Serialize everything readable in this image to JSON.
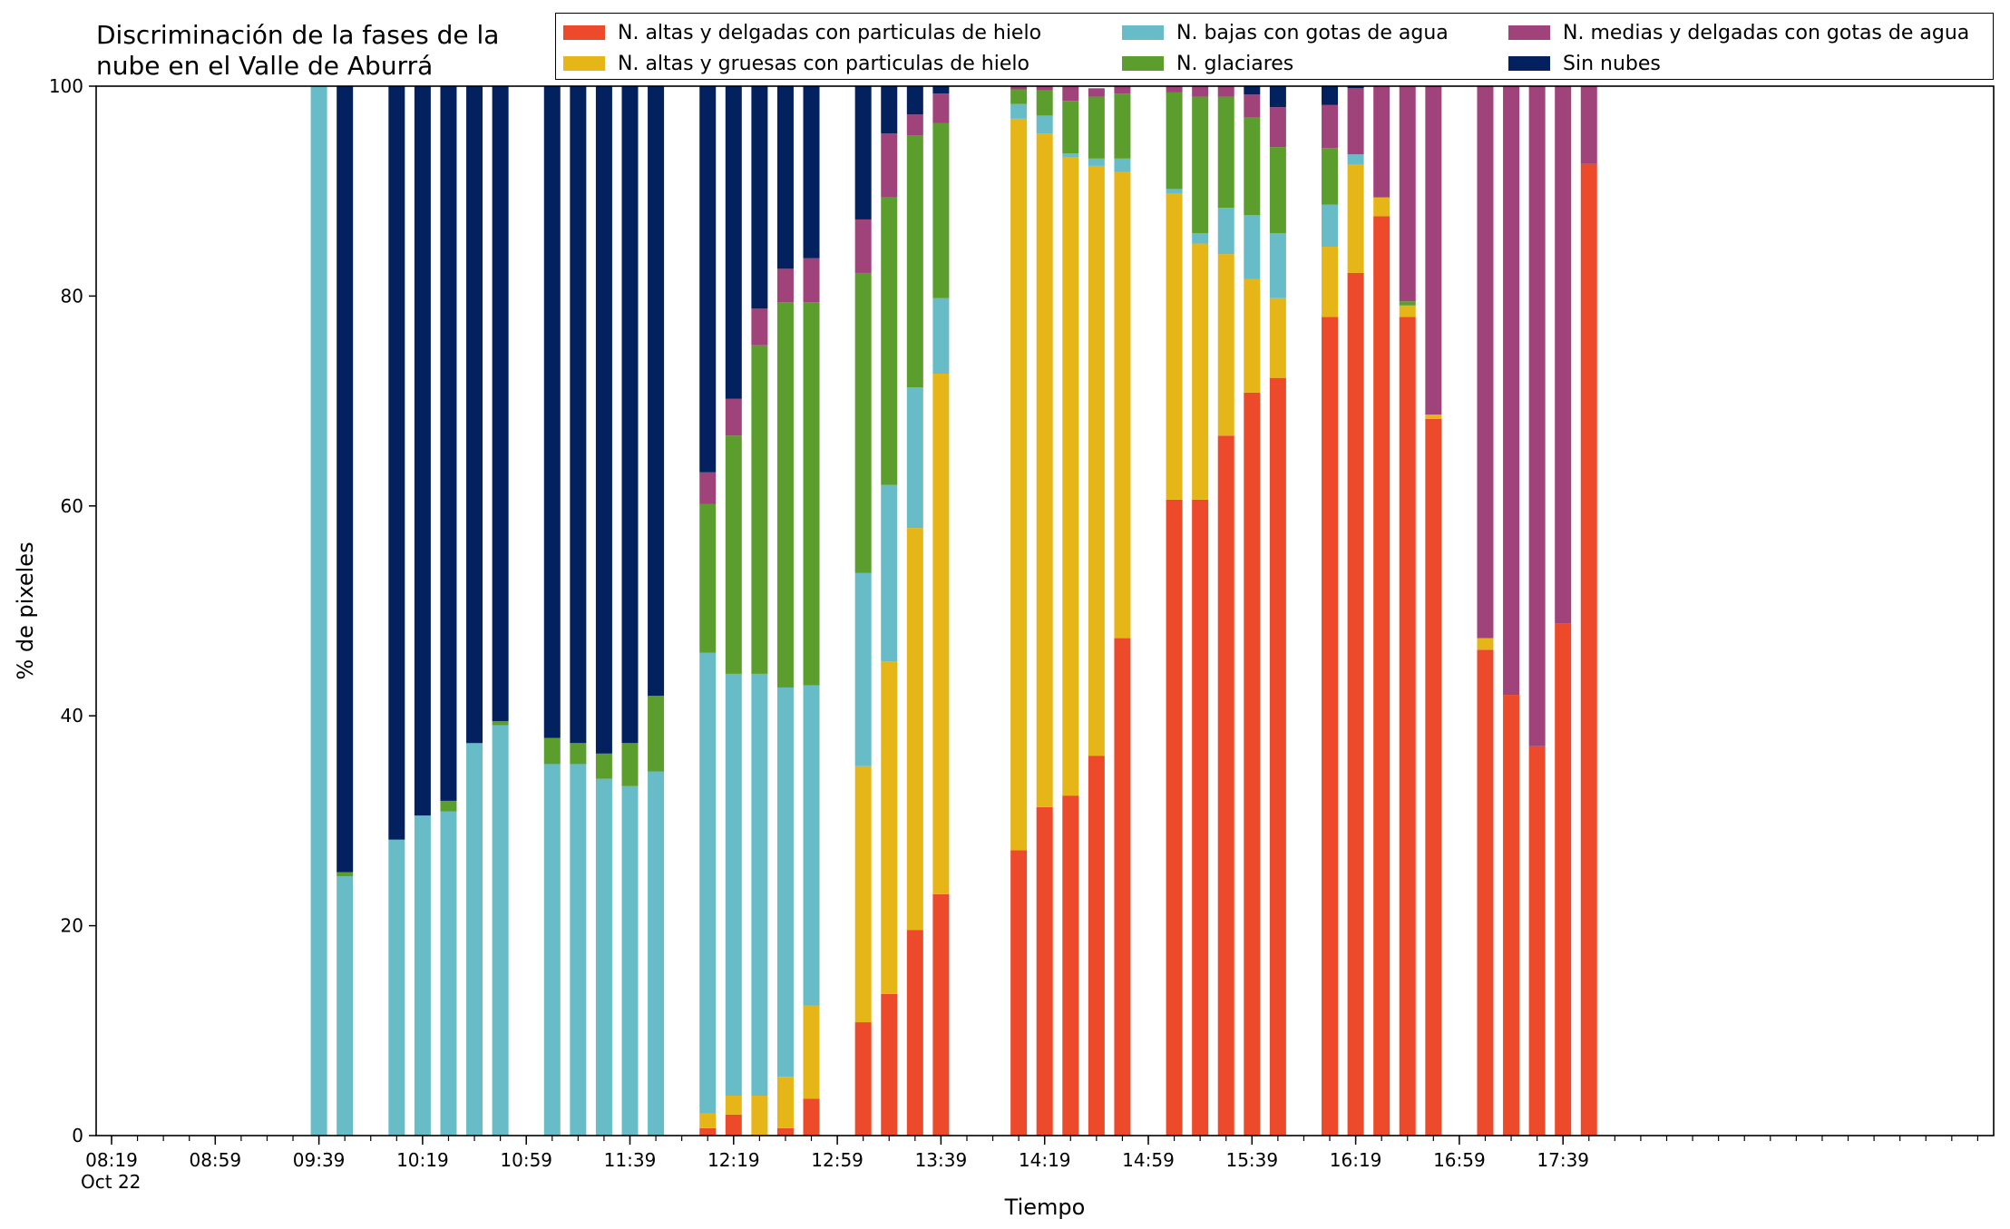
{
  "chart_data": {
    "type": "bar",
    "stacked": true,
    "title": "Discriminación de la fases de la\nnube en el Valle de Aburrá",
    "xlabel": "Tiempo",
    "ylabel": "% de pixeles",
    "ylim": [
      0,
      100
    ],
    "yticks": [
      "0",
      "20",
      "40",
      "60",
      "80",
      "100"
    ],
    "xticks": [
      "08:19\nOct 22",
      "08:59",
      "09:39",
      "10:19",
      "10:59",
      "11:39",
      "12:19",
      "12:59",
      "13:39",
      "14:19",
      "14:59",
      "15:39",
      "16:19",
      "16:59",
      "17:39"
    ],
    "legend_position": "top-right",
    "grid": false,
    "categories": [
      "09:39",
      "09:49",
      "10:09",
      "10:19",
      "10:29",
      "10:39",
      "10:49",
      "11:09",
      "11:19",
      "11:29",
      "11:39",
      "11:49",
      "12:09",
      "12:19",
      "12:29",
      "12:39",
      "12:49",
      "13:09",
      "13:19",
      "13:29",
      "13:39",
      "14:09",
      "14:19",
      "14:29",
      "14:39",
      "14:49",
      "15:09",
      "15:19",
      "15:29",
      "15:39",
      "15:49",
      "16:09",
      "16:19",
      "16:29",
      "16:39",
      "16:49",
      "17:09",
      "17:19",
      "17:29",
      "17:39",
      "17:49"
    ],
    "series": [
      {
        "name": "N. altas y delgadas con particulas de hielo",
        "color": "#ed4a2b",
        "values": [
          0,
          0,
          0,
          0,
          0,
          0,
          0,
          0,
          0,
          0,
          0,
          0,
          0.7,
          2.0,
          0,
          0.7,
          3.5,
          10.8,
          13.5,
          19.6,
          23.0,
          27.2,
          31.3,
          32.4,
          36.2,
          47.4,
          60.6,
          60.6,
          66.7,
          70.8,
          72.2,
          78.0,
          82.2,
          87.6,
          78.0,
          68.3,
          46.3,
          42.0,
          37.1,
          48.8,
          92.6
        ]
      },
      {
        "name": "N. altas y gruesas con particulas de hielo",
        "color": "#e6b517",
        "values": [
          0,
          0,
          0,
          0,
          0,
          0,
          0,
          0,
          0,
          0,
          0,
          0,
          1.4,
          1.8,
          3.8,
          4.9,
          8.9,
          24.4,
          31.7,
          38.3,
          49.6,
          69.7,
          64.2,
          60.8,
          56.2,
          44.4,
          29.2,
          24.4,
          17.3,
          10.8,
          7.6,
          6.7,
          10.3,
          1.8,
          1.1,
          0.4,
          1.1,
          0,
          0,
          0,
          0
        ]
      },
      {
        "name": "N. bajas con gotas de agua",
        "color": "#67bcc8",
        "values": [
          100,
          24.7,
          28.2,
          30.5,
          30.9,
          37.4,
          39.1,
          35.4,
          35.4,
          34.0,
          33.3,
          34.7,
          43.9,
          40.2,
          40.2,
          37.1,
          30.5,
          18.4,
          16.8,
          13.4,
          7.2,
          1.4,
          1.7,
          0.4,
          0.7,
          1.3,
          0.4,
          1.0,
          4.4,
          6.1,
          6.2,
          4.0,
          1.0,
          0,
          0,
          0,
          0,
          0,
          0,
          0,
          0
        ]
      },
      {
        "name": "N. glaciares",
        "color": "#5b9e2d",
        "values": [
          0,
          0.4,
          0,
          0,
          1.0,
          0,
          0.4,
          2.5,
          2.0,
          2.4,
          4.1,
          7.2,
          14.2,
          22.7,
          31.3,
          36.7,
          36.5,
          28.6,
          27.4,
          24.0,
          16.7,
          1.4,
          2.4,
          5.0,
          5.9,
          6.2,
          9.2,
          13.0,
          10.6,
          9.3,
          8.2,
          5.4,
          0,
          0,
          0.4,
          0,
          0,
          0,
          0,
          0,
          0
        ]
      },
      {
        "name": "N. medias y delgadas con gotas de agua",
        "color": "#a0437a",
        "values": [
          0,
          0,
          0,
          0,
          0,
          0,
          0,
          0,
          0,
          0,
          0,
          0,
          3.0,
          3.5,
          3.5,
          3.2,
          4.2,
          5.1,
          6.1,
          2.0,
          2.8,
          0.3,
          0.4,
          1.4,
          0.8,
          0.7,
          0.6,
          1.0,
          1.0,
          2.2,
          3.8,
          4.1,
          6.3,
          10.6,
          20.5,
          31.3,
          52.6,
          58.0,
          62.9,
          51.2,
          7.4
        ]
      },
      {
        "name": "Sin nubes",
        "color": "#03215e",
        "values": [
          0,
          74.9,
          71.8,
          69.5,
          68.1,
          62.6,
          60.5,
          62.1,
          62.6,
          63.6,
          62.6,
          58.1,
          36.8,
          29.8,
          21.2,
          17.4,
          16.4,
          12.7,
          4.5,
          2.7,
          0.7,
          0,
          0,
          0,
          0,
          0,
          0,
          0,
          0,
          0.8,
          2.0,
          1.8,
          0.2,
          0,
          0,
          0,
          0,
          0,
          0,
          0,
          0
        ]
      }
    ]
  }
}
